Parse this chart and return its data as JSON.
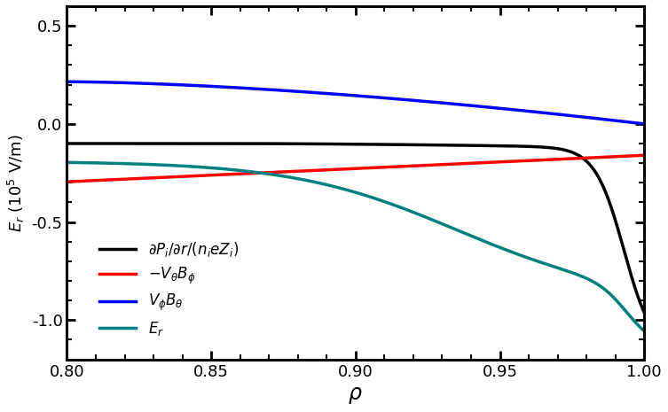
{
  "xlim": [
    0.8,
    1.0
  ],
  "ylim": [
    -1.2,
    0.6
  ],
  "xlabel": "$\\rho$",
  "ylabel": "$E_r$ (10$^5$ V/m)",
  "xticks": [
    0.8,
    0.85,
    0.9,
    0.95,
    1.0
  ],
  "yticks": [
    -1.0,
    -0.5,
    0.0,
    0.5
  ],
  "legend_labels": [
    "$\\partial P_i/\\partial r/(n_i e Z_i)$",
    "$-V_{\\theta}B_{\\phi}$",
    "$V_{\\phi}B_{\\theta}$",
    "$E_r$"
  ],
  "legend_colors": [
    "black",
    "red",
    "blue",
    "teal"
  ],
  "background_color": "#ffffff",
  "linewidth": 2.5
}
